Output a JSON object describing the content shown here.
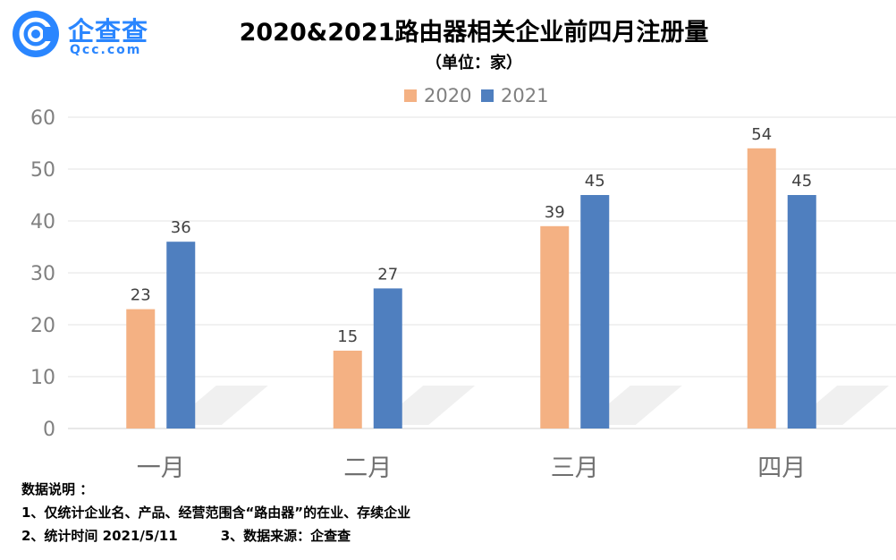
{
  "logo": {
    "brand_cn": "企查查",
    "brand_en": "Qcc.com",
    "icon": "qcc-logo-icon"
  },
  "chart_data": {
    "type": "bar",
    "title": "2020&2021路由器相关企业前四月注册量",
    "subtitle": "（单位：家）",
    "categories": [
      "一月",
      "二月",
      "三月",
      "四月"
    ],
    "series": [
      {
        "name": "2020",
        "values": [
          23,
          15,
          39,
          54
        ],
        "color": "#F4B183"
      },
      {
        "name": "2021",
        "values": [
          36,
          27,
          45,
          45
        ],
        "color": "#4F7FBF"
      }
    ],
    "ylim": [
      0,
      60
    ],
    "yticks": [
      0,
      10,
      20,
      30,
      40,
      50,
      60
    ],
    "grid": true,
    "legend": "top-center",
    "data_labels": true,
    "xlabel": "",
    "ylabel": ""
  },
  "notes": {
    "heading": "数据说明 ：",
    "line1": "1、仅统计企业名、产品、经营范围含“路由器”的在业、存续企业",
    "line2a": "2、统计时间 2021/5/11",
    "line2b": "3、数据来源：企查查"
  }
}
